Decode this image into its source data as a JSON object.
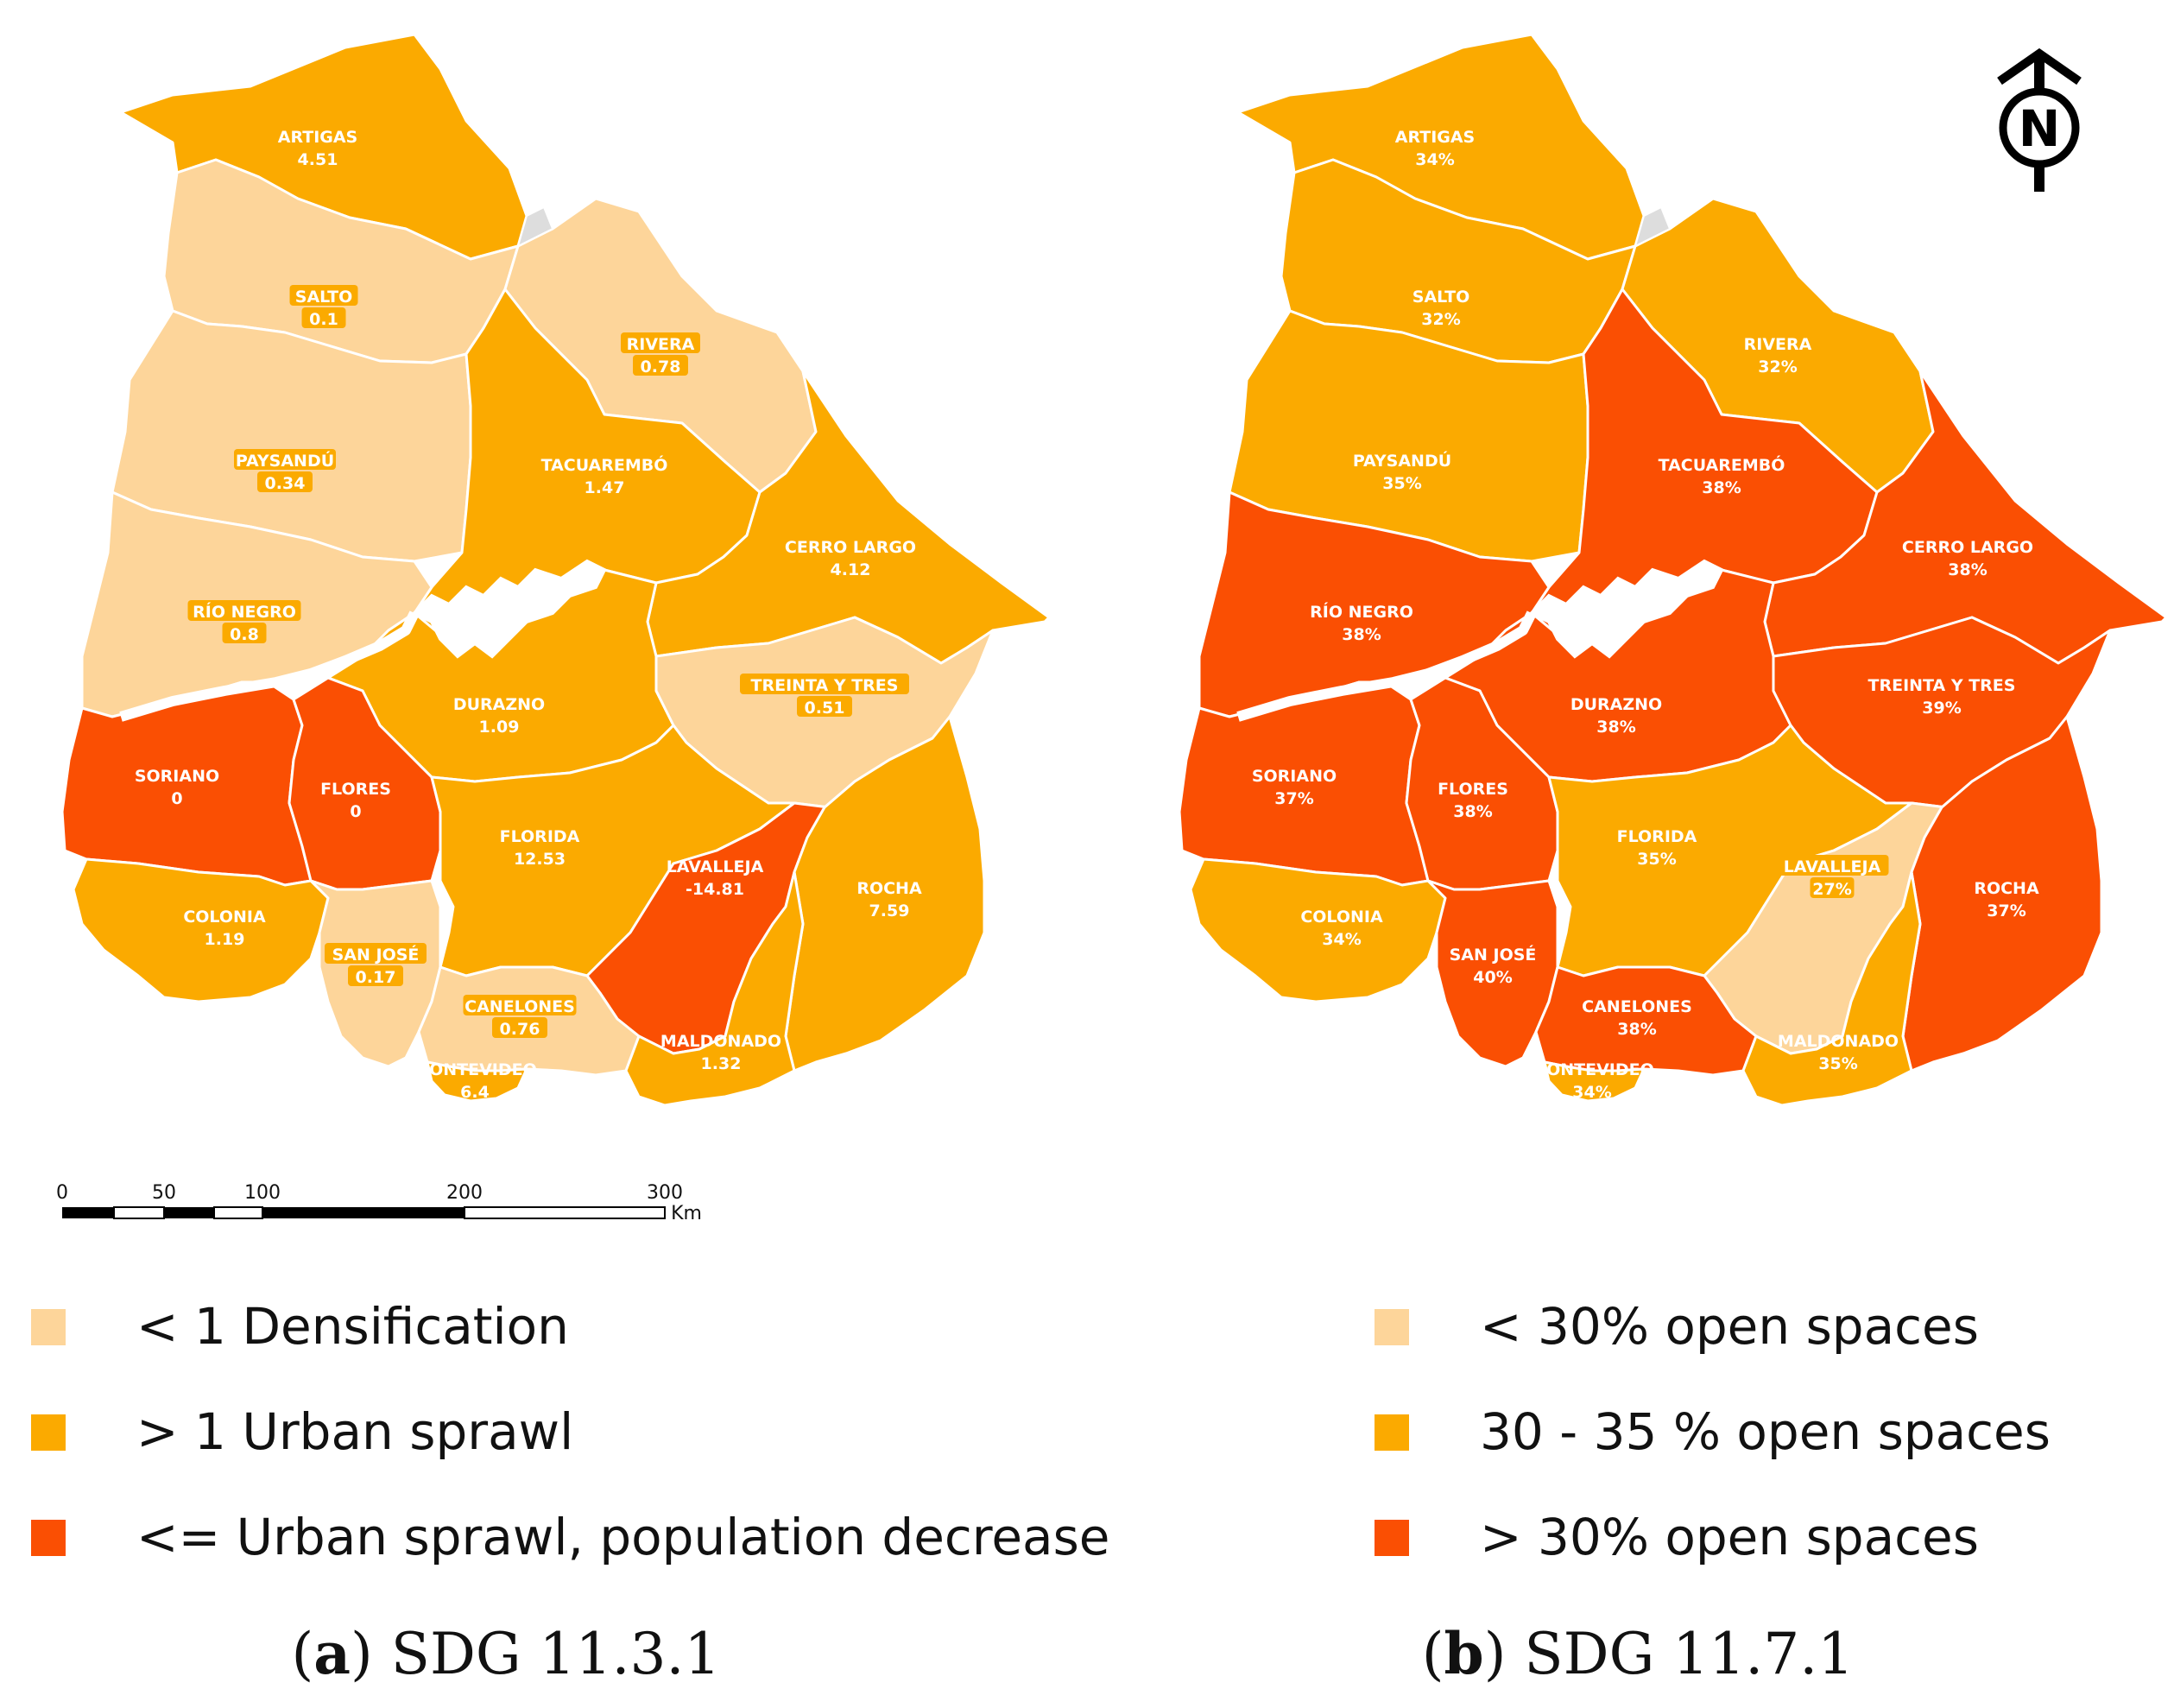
{
  "colors": {
    "densification": "#FDD59A",
    "sprawl": "#FBAA00",
    "decrease": "#FA4F03",
    "grey": "#DDDDDD",
    "label_bg": "#FBAA00"
  },
  "map_a": {
    "departments": [
      {
        "name": "ARTIGAS",
        "value": "4.51",
        "cls": "sprawl"
      },
      {
        "name": "SALTO",
        "value": "0.1",
        "cls": "densification"
      },
      {
        "name": "RIVERA",
        "value": "0.78",
        "cls": "densification"
      },
      {
        "name": "PAYSANDÚ",
        "value": "0.34",
        "cls": "densification"
      },
      {
        "name": "TACUAREMBÓ",
        "value": "1.47",
        "cls": "sprawl"
      },
      {
        "name": "CERRO LARGO",
        "value": "4.12",
        "cls": "sprawl"
      },
      {
        "name": "RÍO NEGRO",
        "value": "0.8",
        "cls": "densification"
      },
      {
        "name": "DURAZNO",
        "value": "1.09",
        "cls": "sprawl"
      },
      {
        "name": "TREINTA Y TRES",
        "value": "0.51",
        "cls": "densification"
      },
      {
        "name": "SORIANO",
        "value": "0",
        "cls": "decrease"
      },
      {
        "name": "FLORES",
        "value": "0",
        "cls": "decrease"
      },
      {
        "name": "FLORIDA",
        "value": "12.53",
        "cls": "sprawl"
      },
      {
        "name": "LAVALLEJA",
        "value": "-14.81",
        "cls": "decrease"
      },
      {
        "name": "ROCHA",
        "value": "7.59",
        "cls": "sprawl"
      },
      {
        "name": "COLONIA",
        "value": "1.19",
        "cls": "sprawl"
      },
      {
        "name": "SAN JOSÉ",
        "value": "0.17",
        "cls": "densification"
      },
      {
        "name": "CANELONES",
        "value": "0.76",
        "cls": "densification"
      },
      {
        "name": "MALDONADO",
        "value": "1.32",
        "cls": "sprawl"
      },
      {
        "name": "MONTEVIDEO",
        "value": "6.4",
        "cls": "sprawl"
      }
    ]
  },
  "map_b": {
    "departments": [
      {
        "name": "ARTIGAS",
        "value": "34%",
        "cls": "sprawl"
      },
      {
        "name": "SALTO",
        "value": "32%",
        "cls": "sprawl"
      },
      {
        "name": "RIVERA",
        "value": "32%",
        "cls": "sprawl"
      },
      {
        "name": "PAYSANDÚ",
        "value": "35%",
        "cls": "sprawl"
      },
      {
        "name": "TACUAREMBÓ",
        "value": "38%",
        "cls": "decrease"
      },
      {
        "name": "CERRO LARGO",
        "value": "38%",
        "cls": "decrease"
      },
      {
        "name": "RÍO NEGRO",
        "value": "38%",
        "cls": "decrease"
      },
      {
        "name": "DURAZNO",
        "value": "38%",
        "cls": "decrease"
      },
      {
        "name": "TREINTA Y TRES",
        "value": "39%",
        "cls": "decrease"
      },
      {
        "name": "SORIANO",
        "value": "37%",
        "cls": "decrease"
      },
      {
        "name": "FLORES",
        "value": "38%",
        "cls": "decrease"
      },
      {
        "name": "FLORIDA",
        "value": "35%",
        "cls": "sprawl"
      },
      {
        "name": "LAVALLEJA",
        "value": "27%",
        "cls": "densification"
      },
      {
        "name": "ROCHA",
        "value": "37%",
        "cls": "decrease"
      },
      {
        "name": "COLONIA",
        "value": "34%",
        "cls": "sprawl"
      },
      {
        "name": "SAN JOSÉ",
        "value": "40%",
        "cls": "decrease"
      },
      {
        "name": "CANELONES",
        "value": "38%",
        "cls": "decrease"
      },
      {
        "name": "MALDONADO",
        "value": "35%",
        "cls": "sprawl"
      },
      {
        "name": "MONTEVIDEO",
        "value": "34%",
        "cls": "sprawl"
      }
    ]
  },
  "scale_bar": {
    "ticks": [
      "0",
      "50",
      "100",
      "200",
      "300"
    ],
    "unit": "Km"
  },
  "north_arrow": {
    "letter": "N",
    "icon": "north-arrow-icon"
  },
  "legend_a": [
    {
      "cls": "densification",
      "text": "< 1 Densification"
    },
    {
      "cls": "sprawl",
      "text": "> 1 Urban sprawl"
    },
    {
      "cls": "decrease",
      "text": "<= Urban sprawl, population decrease"
    }
  ],
  "legend_b": [
    {
      "cls": "densification",
      "text": "< 30% open spaces"
    },
    {
      "cls": "sprawl",
      "text": "30 - 35 % open spaces"
    },
    {
      "cls": "decrease",
      "text": "> 30% open spaces"
    }
  ],
  "captions": [
    {
      "letter": "a",
      "text": " SDG 11.3.1"
    },
    {
      "letter": "b",
      "text": " SDG 11.7.1"
    }
  ]
}
